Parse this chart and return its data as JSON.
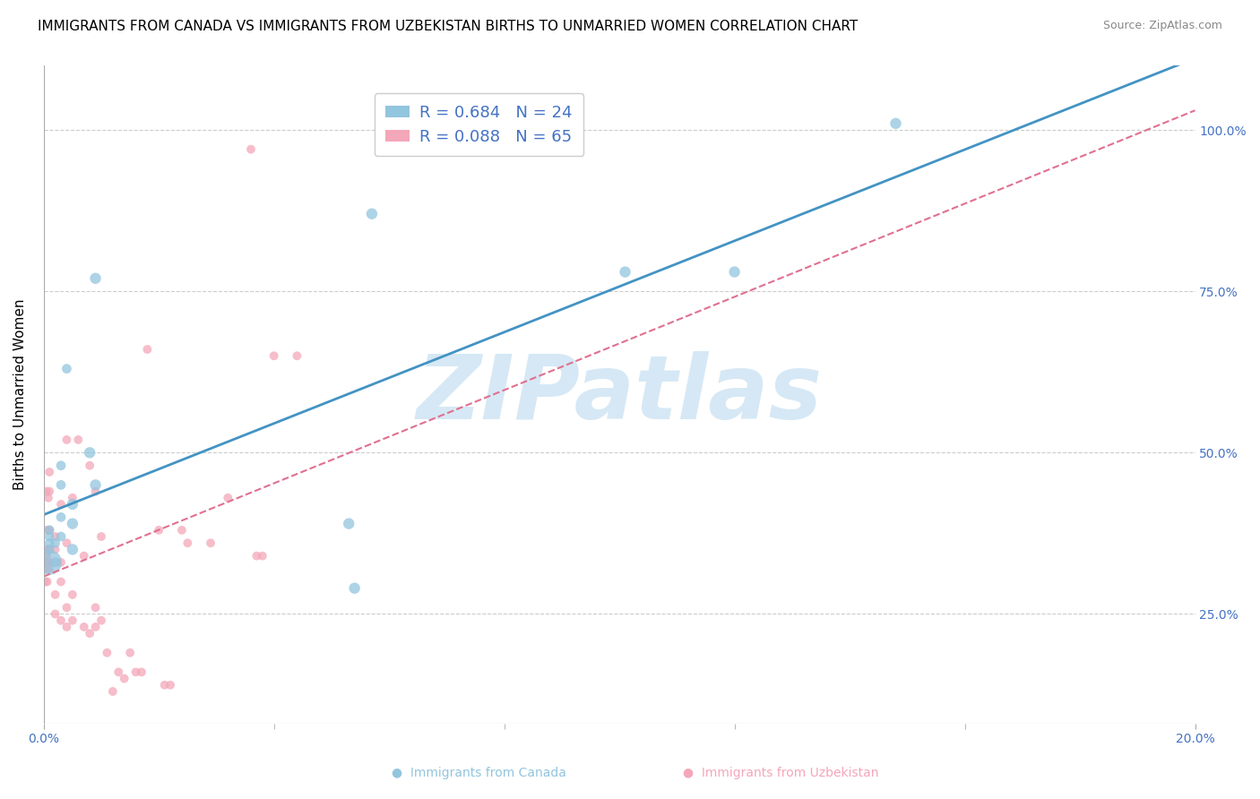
{
  "title": "IMMIGRANTS FROM CANADA VS IMMIGRANTS FROM UZBEKISTAN BIRTHS TO UNMARRIED WOMEN CORRELATION CHART",
  "source": "Source: ZipAtlas.com",
  "ylabel": "Births to Unmarried Women",
  "canada_R": 0.684,
  "canada_N": 24,
  "uzbekistan_R": 0.088,
  "uzbekistan_N": 65,
  "canada_color": "#92c5de",
  "uzbekistan_color": "#f4a7b9",
  "canada_line_color": "#4393c3",
  "uzbekistan_line_color": "#e07090",
  "watermark": "ZIPatlas",
  "watermark_color": "#d6e8f5",
  "background_color": "#ffffff",
  "title_fontsize": 11,
  "source_fontsize": 9,
  "canada_x": [
    0.001,
    0.001,
    0.001,
    0.001,
    0.001,
    0.002,
    0.002,
    0.003,
    0.003,
    0.003,
    0.003,
    0.004,
    0.005,
    0.005,
    0.005,
    0.008,
    0.009,
    0.009,
    0.053,
    0.054,
    0.057,
    0.101,
    0.12,
    0.148
  ],
  "canada_y": [
    0.33,
    0.35,
    0.36,
    0.37,
    0.38,
    0.33,
    0.36,
    0.37,
    0.4,
    0.45,
    0.48,
    0.63,
    0.35,
    0.39,
    0.42,
    0.5,
    0.45,
    0.77,
    0.39,
    0.29,
    0.87,
    0.78,
    0.78,
    1.01
  ],
  "canada_sizes": [
    400,
    60,
    60,
    60,
    60,
    60,
    60,
    60,
    60,
    60,
    60,
    60,
    80,
    80,
    80,
    80,
    80,
    80,
    80,
    80,
    80,
    80,
    80,
    80
  ],
  "uzbekistan_x": [
    0.0002,
    0.0003,
    0.0004,
    0.0004,
    0.0005,
    0.0005,
    0.0006,
    0.0006,
    0.0006,
    0.0007,
    0.0007,
    0.0008,
    0.0008,
    0.0009,
    0.001,
    0.001,
    0.001,
    0.001,
    0.001,
    0.001,
    0.002,
    0.002,
    0.002,
    0.002,
    0.003,
    0.003,
    0.003,
    0.003,
    0.004,
    0.004,
    0.004,
    0.004,
    0.005,
    0.005,
    0.005,
    0.006,
    0.007,
    0.007,
    0.008,
    0.008,
    0.009,
    0.009,
    0.009,
    0.01,
    0.01,
    0.011,
    0.012,
    0.013,
    0.014,
    0.015,
    0.016,
    0.017,
    0.018,
    0.02,
    0.021,
    0.022,
    0.024,
    0.025,
    0.029,
    0.032,
    0.036,
    0.037,
    0.038,
    0.04,
    0.044
  ],
  "uzbekistan_y": [
    0.33,
    0.3,
    0.34,
    0.35,
    0.34,
    0.44,
    0.3,
    0.32,
    0.38,
    0.33,
    0.35,
    0.33,
    0.43,
    0.35,
    0.32,
    0.33,
    0.35,
    0.38,
    0.44,
    0.47,
    0.25,
    0.28,
    0.35,
    0.37,
    0.24,
    0.3,
    0.33,
    0.42,
    0.23,
    0.26,
    0.36,
    0.52,
    0.24,
    0.28,
    0.43,
    0.52,
    0.23,
    0.34,
    0.22,
    0.48,
    0.23,
    0.26,
    0.44,
    0.24,
    0.37,
    0.19,
    0.13,
    0.16,
    0.15,
    0.19,
    0.16,
    0.16,
    0.66,
    0.38,
    0.14,
    0.14,
    0.38,
    0.36,
    0.36,
    0.43,
    0.97,
    0.34,
    0.34,
    0.65,
    0.65
  ],
  "uzbekistan_sizes": [
    50,
    50,
    50,
    50,
    50,
    50,
    50,
    50,
    50,
    50,
    50,
    50,
    50,
    50,
    50,
    50,
    50,
    50,
    50,
    50,
    50,
    50,
    50,
    50,
    50,
    50,
    50,
    50,
    50,
    50,
    50,
    50,
    50,
    50,
    50,
    50,
    50,
    50,
    50,
    50,
    50,
    50,
    50,
    50,
    50,
    50,
    50,
    50,
    50,
    50,
    50,
    50,
    50,
    50,
    50,
    50,
    50,
    50,
    50,
    50,
    50,
    50,
    50,
    50,
    50
  ],
  "xlim": [
    0.0,
    0.2
  ],
  "ylim": [
    0.08,
    1.1
  ],
  "ytick_vals": [
    0.25,
    0.5,
    0.75,
    1.0
  ],
  "xtick_vals": [
    0.0,
    0.2
  ],
  "xtick_minor_vals": [
    0.04,
    0.08,
    0.12,
    0.16
  ],
  "grid_yticks": [
    0.25,
    0.5,
    0.75,
    1.0
  ],
  "tick_label_color": "#4472c4",
  "legend_edge_color": "#cccccc",
  "axis_line_color": "#aaaaaa"
}
